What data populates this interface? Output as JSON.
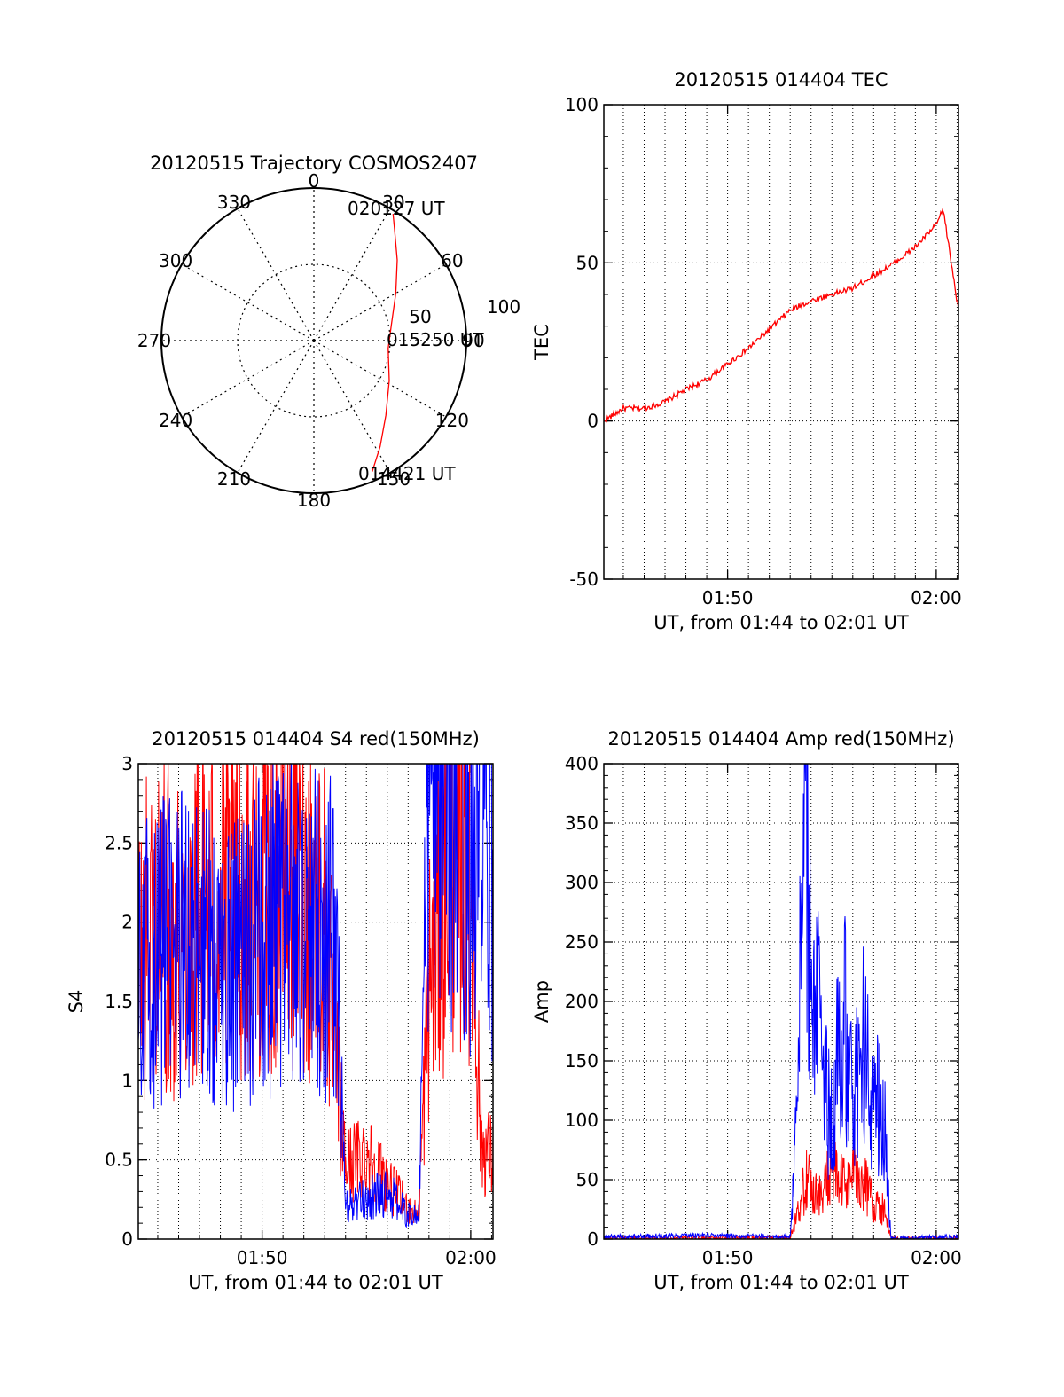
{
  "chart_data": [
    {
      "id": "trajectory",
      "type": "polar",
      "title": "20120515 Trajectory COSMOS2407",
      "azimuth_labels": [
        "0",
        "30",
        "60",
        "90",
        "120",
        "150",
        "180",
        "210",
        "240",
        "270",
        "300",
        "330"
      ],
      "radial_labels": [
        "50",
        "100"
      ],
      "r_max": 100,
      "start_label": "014421 UT",
      "mid_label": "015250 UT",
      "end_label": "020127 UT",
      "track": {
        "az": [
          156,
          148,
          136,
          118,
          96,
          78,
          60,
          46,
          36,
          32
        ],
        "r": [
          94,
          82,
          68,
          56,
          49,
          52,
          62,
          76,
          90,
          98
        ]
      },
      "colors": {
        "track": "#ff0000"
      }
    },
    {
      "id": "tec",
      "type": "line",
      "title": "20120515 014404 TEC",
      "xlabel": "UT, from 01:44 to 02:01 UT",
      "ylabel": "TEC",
      "xlim": [
        "01:44:04",
        "02:01:04"
      ],
      "ylim": [
        -50,
        100
      ],
      "yticks": [
        "-50",
        "0",
        "50",
        "100"
      ],
      "xticks": [
        {
          "t": "01:50",
          "label": "01:50"
        },
        {
          "t": "02:00",
          "label": "02:00"
        }
      ],
      "grid": true,
      "series": [
        {
          "color": "#ff0000",
          "x": [
            "01:44:04",
            "01:45:00",
            "01:46:00",
            "01:47:00",
            "01:48:00",
            "01:49:00",
            "01:50:00",
            "01:51:00",
            "01:52:00",
            "01:53:00",
            "01:54:00",
            "01:55:00",
            "01:56:00",
            "01:57:00",
            "01:58:00",
            "01:59:00",
            "02:00:00",
            "02:00:20",
            "02:01:04"
          ],
          "y": [
            0,
            4,
            4,
            6,
            10,
            13,
            18,
            23,
            29,
            35,
            38,
            40,
            42,
            46,
            50,
            55,
            62,
            67,
            35
          ]
        }
      ]
    },
    {
      "id": "s4",
      "type": "line",
      "title": "20120515 014404 S4 red(150MHz)",
      "xlabel": "UT, from 01:44 to 02:01 UT",
      "ylabel": "S4",
      "xlim": [
        "01:44:04",
        "02:01:04"
      ],
      "ylim": [
        0,
        3
      ],
      "yticks": [
        "0",
        "0.5",
        "1",
        "1.5",
        "2",
        "2.5",
        "3"
      ],
      "xticks": [
        {
          "t": "01:50",
          "label": "01:50"
        },
        {
          "t": "02:00",
          "label": "02:00"
        }
      ],
      "grid": true,
      "series": [
        {
          "color": "#ff0000",
          "x": [
            "01:44:04",
            "01:45:00",
            "01:46:00",
            "01:47:00",
            "01:48:00",
            "01:49:00",
            "01:50:00",
            "01:51:00",
            "01:52:00",
            "01:53:00",
            "01:53:30",
            "01:54:00",
            "01:55:00",
            "01:56:00",
            "01:57:00",
            "01:57:30",
            "01:58:00",
            "01:59:00",
            "02:00:00",
            "02:00:30",
            "02:01:04"
          ],
          "y": [
            1.8,
            2.0,
            1.9,
            2.1,
            2.0,
            2.2,
            2.1,
            2.3,
            2.2,
            2.0,
            1.2,
            0.45,
            0.55,
            0.35,
            0.2,
            0.15,
            1.6,
            2.5,
            2.4,
            0.6,
            0.5
          ]
        },
        {
          "color": "#0000ff",
          "x": [
            "01:44:04",
            "01:45:00",
            "01:46:00",
            "01:47:00",
            "01:48:00",
            "01:49:00",
            "01:50:00",
            "01:51:00",
            "01:52:00",
            "01:53:00",
            "01:53:30",
            "01:54:00",
            "01:55:00",
            "01:56:00",
            "01:57:00",
            "01:57:30",
            "01:58:00",
            "01:59:00",
            "02:00:00",
            "02:00:30",
            "02:01:04"
          ],
          "y": [
            1.7,
            1.8,
            1.9,
            1.8,
            1.7,
            1.8,
            1.9,
            2.0,
            2.0,
            1.9,
            1.9,
            0.2,
            0.25,
            0.3,
            0.15,
            0.15,
            2.8,
            2.9,
            2.5,
            2.6,
            2.4
          ]
        }
      ]
    },
    {
      "id": "amp",
      "type": "line",
      "title": "20120515 014404 Amp red(150MHz)",
      "xlabel": "UT, from 01:44 to 02:01 UT",
      "ylabel": "Amp",
      "xlim": [
        "01:44:04",
        "02:01:04"
      ],
      "ylim": [
        0,
        400
      ],
      "yticks": [
        "0",
        "50",
        "100",
        "150",
        "200",
        "250",
        "300",
        "350",
        "400"
      ],
      "xticks": [
        {
          "t": "01:50",
          "label": "01:50"
        },
        {
          "t": "02:00",
          "label": "02:00"
        }
      ],
      "grid": true,
      "series": [
        {
          "color": "#ff0000",
          "x": [
            "01:44:04",
            "01:50:00",
            "01:53:00",
            "01:53:20",
            "01:53:45",
            "01:54:30",
            "01:55:00",
            "01:55:30",
            "01:56:00",
            "01:56:30",
            "01:57:00",
            "01:57:30",
            "01:57:50",
            "02:01:04"
          ],
          "y": [
            0,
            1,
            1,
            20,
            50,
            35,
            60,
            45,
            55,
            50,
            30,
            25,
            0,
            0
          ]
        },
        {
          "color": "#0000ff",
          "x": [
            "01:44:04",
            "01:49:00",
            "01:53:00",
            "01:53:20",
            "01:53:40",
            "01:54:00",
            "01:54:30",
            "01:55:00",
            "01:55:30",
            "01:56:00",
            "01:56:30",
            "01:57:00",
            "01:57:30",
            "01:57:50",
            "02:01:04"
          ],
          "y": [
            2,
            3,
            2,
            100,
            350,
            240,
            150,
            90,
            200,
            110,
            160,
            120,
            100,
            0,
            2
          ]
        }
      ]
    }
  ]
}
